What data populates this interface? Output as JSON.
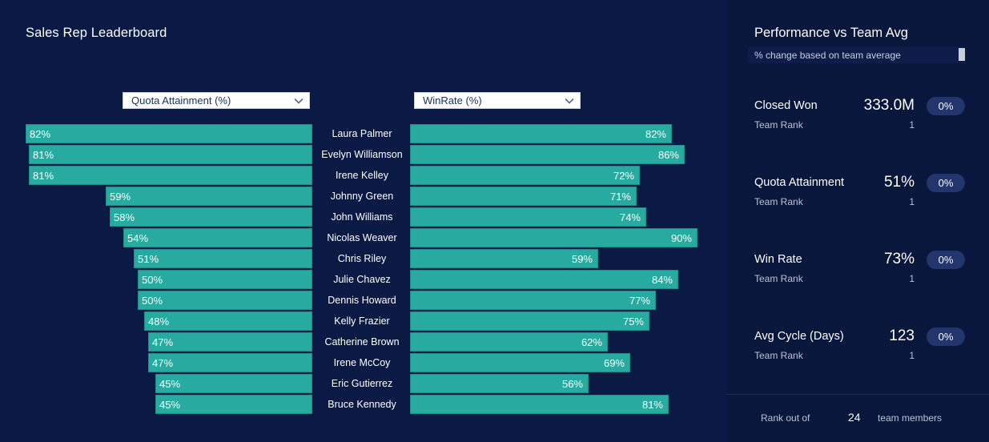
{
  "leaderboard": {
    "title": "Sales Rep Leaderboard",
    "left_metric": "Quota Attainment (%)",
    "right_metric": "WinRate (%)",
    "rows": [
      {
        "name": "Laura Palmer",
        "quota": 82,
        "quota_label": "82%",
        "winrate": 82,
        "winrate_label": "82%"
      },
      {
        "name": "Evelyn Williamson",
        "quota": 81,
        "quota_label": "81%",
        "winrate": 86,
        "winrate_label": "86%"
      },
      {
        "name": "Irene Kelley",
        "quota": 81,
        "quota_label": "81%",
        "winrate": 72,
        "winrate_label": "72%"
      },
      {
        "name": "Johnny Green",
        "quota": 59,
        "quota_label": "59%",
        "winrate": 71,
        "winrate_label": "71%"
      },
      {
        "name": "John Williams",
        "quota": 58,
        "quota_label": "58%",
        "winrate": 74,
        "winrate_label": "74%"
      },
      {
        "name": "Nicolas Weaver",
        "quota": 54,
        "quota_label": "54%",
        "winrate": 90,
        "winrate_label": "90%"
      },
      {
        "name": "Chris Riley",
        "quota": 51,
        "quota_label": "51%",
        "winrate": 59,
        "winrate_label": "59%"
      },
      {
        "name": "Julie Chavez",
        "quota": 50,
        "quota_label": "50%",
        "winrate": 84,
        "winrate_label": "84%"
      },
      {
        "name": "Dennis Howard",
        "quota": 50,
        "quota_label": "50%",
        "winrate": 77,
        "winrate_label": "77%"
      },
      {
        "name": "Kelly Frazier",
        "quota": 48,
        "quota_label": "48%",
        "winrate": 75,
        "winrate_label": "75%"
      },
      {
        "name": "Catherine Brown",
        "quota": 47,
        "quota_label": "47%",
        "winrate": 62,
        "winrate_label": "62%"
      },
      {
        "name": "Irene McCoy",
        "quota": 47,
        "quota_label": "47%",
        "winrate": 69,
        "winrate_label": "69%"
      },
      {
        "name": "Eric Gutierrez",
        "quota": 45,
        "quota_label": "45%",
        "winrate": 56,
        "winrate_label": "56%"
      },
      {
        "name": "Bruce Kennedy",
        "quota": 45,
        "quota_label": "45%",
        "winrate": 81,
        "winrate_label": "81%"
      }
    ]
  },
  "performance": {
    "title": "Performance vs Team Avg",
    "subtitle": "% change based on team average",
    "metrics": [
      {
        "label": "Closed Won",
        "value": "333.0M",
        "change": "0%",
        "rank_label": "Team Rank",
        "rank": "1"
      },
      {
        "label": "Quota Attainment",
        "value": "51%",
        "change": "0%",
        "rank_label": "Team Rank",
        "rank": "1"
      },
      {
        "label": "Win Rate",
        "value": "73%",
        "change": "0%",
        "rank_label": "Team Rank",
        "rank": "1"
      },
      {
        "label": "Avg Cycle (Days)",
        "value": "123",
        "change": "0%",
        "rank_label": "Team Rank",
        "rank": "1"
      }
    ],
    "footer": {
      "prefix": "Rank out of",
      "count": "24",
      "suffix": "team members"
    }
  },
  "colors": {
    "background": "#0b1a45",
    "bar": "#27aba1",
    "pill": "#23356d"
  }
}
